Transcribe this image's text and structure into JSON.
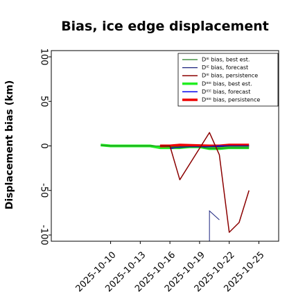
{
  "chart_data": {
    "type": "line",
    "title": "Bias, ice edge displacement",
    "ylabel": "Displacement bias (km)",
    "xlabel": "",
    "xlim": [
      "2025-10-04",
      "2025-10-27"
    ],
    "ylim": [
      -107,
      107
    ],
    "y_ticks": [
      100,
      50,
      0,
      -50,
      -100
    ],
    "y_tick_labels": [
      "100",
      "50",
      "0",
      "-50",
      "-100"
    ],
    "x_ticks": [
      "2025-10-10",
      "2025-10-13",
      "2025-10-16",
      "2025-10-19",
      "2025-10-22",
      "2025-10-25"
    ],
    "x_tick_labels": [
      "2025-10-10",
      "2025-10-13",
      "2025-10-16",
      "2025-10-19",
      "2025-10-22",
      "2025-10-25"
    ],
    "highlighted_tick": "2025-10-16",
    "highlight_color": "#228b22",
    "grid": false,
    "legend_position": "top-right",
    "series": [
      {
        "name": "Dᴵᴱ bias, best est.",
        "color": "#1e7b1e",
        "width": 1,
        "points": [
          [
            "2025-10-09",
            1
          ],
          [
            "2025-10-10",
            0
          ],
          [
            "2025-10-13",
            0
          ],
          [
            "2025-10-14",
            0
          ],
          [
            "2025-10-15",
            0
          ],
          [
            "2025-10-16",
            -1
          ],
          [
            "2025-10-17",
            -1
          ],
          [
            "2025-10-18",
            -1
          ],
          [
            "2025-10-19",
            -1
          ],
          [
            "2025-10-20",
            -3
          ],
          [
            "2025-10-21",
            -3
          ],
          [
            "2025-10-22",
            -2
          ],
          [
            "2025-10-23",
            -2
          ],
          [
            "2025-10-24",
            -2
          ]
        ]
      },
      {
        "name": "Dᴵᴱ bias, forecast",
        "color": "#1a237e",
        "width": 1,
        "points": [
          [
            "2025-10-16",
            -2
          ],
          [
            "2025-10-17",
            -2
          ],
          [
            "2025-10-18",
            -1
          ],
          [
            "2025-10-19",
            -1
          ],
          [
            "2025-10-20",
            -1
          ],
          [
            "2025-10-21",
            -1
          ],
          [
            "2025-10-22",
            0
          ],
          [
            "2025-10-23",
            0
          ],
          [
            "2025-10-24",
            0
          ]
        ]
      },
      {
        "name": "Dᴵᴱ bias, persistence",
        "color": "#8b0000",
        "width": 1.5,
        "points": [
          [
            "2025-10-15",
            0
          ],
          [
            "2025-10-16",
            0
          ],
          [
            "2025-10-17",
            -38
          ],
          [
            "2025-10-20",
            15
          ],
          [
            "2025-10-21",
            -10
          ],
          [
            "2025-10-22",
            -97
          ],
          [
            "2025-10-23",
            -86
          ],
          [
            "2025-10-24",
            -50
          ]
        ]
      },
      {
        "name": "Dᴵᴱᴱ bias, best est.",
        "color": "#22ee22",
        "width": 4,
        "points": [
          [
            "2025-10-09",
            1
          ],
          [
            "2025-10-10",
            0
          ],
          [
            "2025-10-13",
            0
          ],
          [
            "2025-10-14",
            0
          ],
          [
            "2025-10-15",
            -2
          ],
          [
            "2025-10-16",
            -2
          ],
          [
            "2025-10-17",
            -2
          ],
          [
            "2025-10-18",
            -1
          ],
          [
            "2025-10-19",
            -1
          ],
          [
            "2025-10-20",
            -3
          ],
          [
            "2025-10-21",
            -3
          ],
          [
            "2025-10-22",
            -2
          ],
          [
            "2025-10-23",
            -2
          ],
          [
            "2025-10-24",
            -2
          ]
        ]
      },
      {
        "name": "Dᴵᴱᴱ bias, forecast",
        "color": "#0000ee",
        "width": 1.5,
        "points": [
          [
            "2025-10-16",
            -3
          ],
          [
            "2025-10-17",
            -1
          ],
          [
            "2025-10-18",
            -1
          ],
          [
            "2025-10-19",
            -1
          ],
          [
            "2025-10-20",
            -1
          ],
          [
            "2025-10-21",
            0
          ],
          [
            "2025-10-22",
            0
          ],
          [
            "2025-10-23",
            0
          ],
          [
            "2025-10-24",
            0
          ]
        ]
      },
      {
        "name": "Dᴵᴱᴱ bias, persistence",
        "color": "#ee0000",
        "width": 4,
        "points": [
          [
            "2025-10-15",
            0
          ],
          [
            "2025-10-16",
            0
          ],
          [
            "2025-10-17",
            1
          ],
          [
            "2025-10-20",
            0
          ],
          [
            "2025-10-21",
            0
          ],
          [
            "2025-10-22",
            1
          ],
          [
            "2025-10-23",
            1
          ],
          [
            "2025-10-24",
            1
          ]
        ]
      }
    ],
    "extra_lines": [
      {
        "of_series": "Dᴵᴱ bias, persistence",
        "color": "#8b0000",
        "width": 0.5,
        "points": [
          [
            "2025-10-17",
            -38
          ],
          [
            "2025-10-20",
            15
          ]
        ]
      },
      {
        "of_series": "Dᴵᴱ bias, forecast",
        "color": "#1a237e",
        "width": 1,
        "points": [
          [
            "2025-10-20",
            -107
          ],
          [
            "2025-10-20",
            -73
          ],
          [
            "2025-10-21",
            -83
          ]
        ]
      }
    ]
  }
}
